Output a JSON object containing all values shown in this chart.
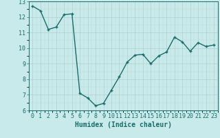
{
  "x": [
    0,
    1,
    2,
    3,
    4,
    5,
    6,
    7,
    8,
    9,
    10,
    11,
    12,
    13,
    14,
    15,
    16,
    17,
    18,
    19,
    20,
    21,
    22,
    23
  ],
  "y": [
    12.7,
    12.4,
    11.2,
    11.35,
    12.15,
    12.2,
    7.1,
    6.8,
    6.3,
    6.45,
    7.3,
    8.15,
    9.1,
    9.55,
    9.6,
    9.0,
    9.5,
    9.75,
    10.7,
    10.4,
    9.8,
    10.35,
    10.1,
    10.2
  ],
  "line_color": "#1a6b6b",
  "marker": "+",
  "marker_color": "#1a6b6b",
  "marker_size": 3,
  "bg_color": "#c8eaea",
  "grid_major_color": "#b0cece",
  "grid_minor_color": "#c0dada",
  "xlabel": "Humidex (Indice chaleur)",
  "xlabel_fontsize": 7,
  "ylim": [
    6,
    13
  ],
  "xlim": [
    -0.5,
    23.5
  ],
  "yticks": [
    6,
    7,
    8,
    9,
    10,
    11,
    12,
    13
  ],
  "xticks": [
    0,
    1,
    2,
    3,
    4,
    5,
    6,
    7,
    8,
    9,
    10,
    11,
    12,
    13,
    14,
    15,
    16,
    17,
    18,
    19,
    20,
    21,
    22,
    23
  ],
  "tick_fontsize": 6,
  "linewidth": 1.0
}
